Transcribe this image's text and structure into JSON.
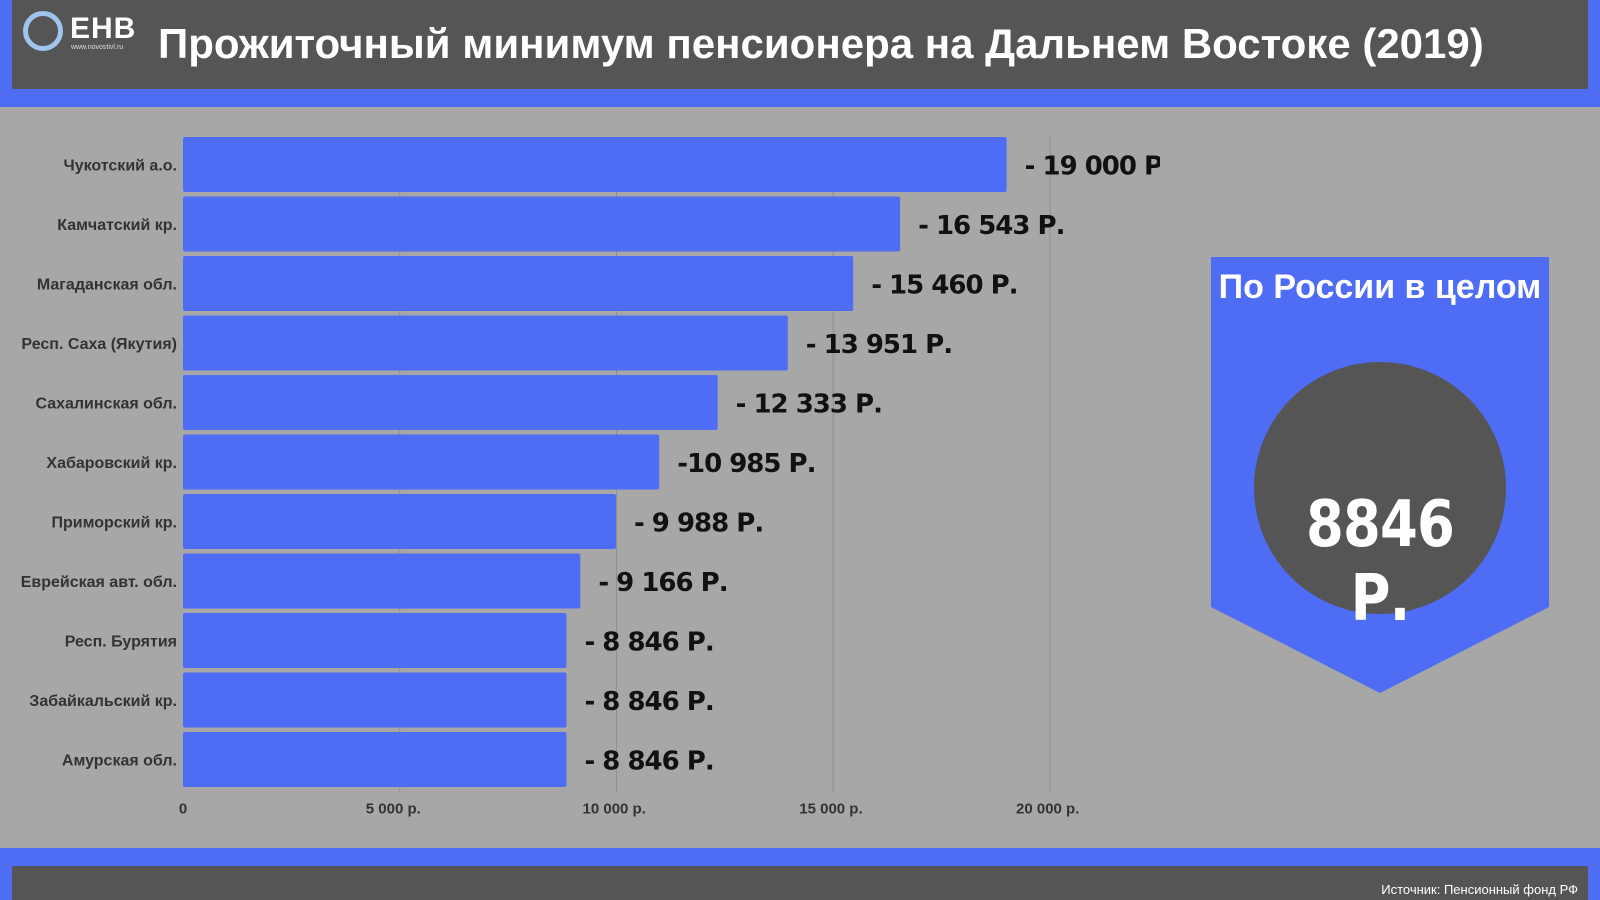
{
  "logo": {
    "text": "ЕНВ",
    "url": "www.novostivl.ru"
  },
  "header": {
    "title": "Прожиточный минимум пенсионера на Дальнем Востоке (2019)"
  },
  "summary": {
    "label": "По России в целом",
    "value": "8846 Р."
  },
  "footer": {
    "source": "Источник: Пенсионный фонд РФ"
  },
  "colors": {
    "bar": "#4f6cf5",
    "background": "#a7a7a7",
    "header": "#555555",
    "circle": "#555555"
  },
  "chart_data": {
    "type": "bar",
    "orientation": "horizontal",
    "categories": [
      "Чукотский а.о.",
      "Камчатский кр.",
      "Магаданская обл.",
      "Респ. Саха (Якутия)",
      "Сахалинская обл.",
      "Хабаровский кр.",
      "Приморский кр.",
      "Еврейская авт. обл.",
      "Респ. Бурятия",
      "Забайкальский кр.",
      "Амурская обл."
    ],
    "values": [
      19000,
      16543,
      15460,
      13951,
      12333,
      10985,
      9988,
      9166,
      8846,
      8846,
      8846
    ],
    "value_labels": [
      "- 19 000 Р.",
      "- 16 543 Р.",
      "- 15 460 Р.",
      "- 13 951 Р.",
      "- 12 333 Р.",
      "-10 985 Р.",
      "- 9 988 Р.",
      "- 9 166 Р.",
      "- 8 846 Р.",
      "- 8 846 Р.",
      "- 8 846 Р."
    ],
    "xticks": [
      0,
      5000,
      10000,
      15000,
      20000
    ],
    "xtick_labels": [
      "0",
      "5 000  р.",
      "10 000  р.",
      "15 000  р.",
      "20 000  р."
    ],
    "xlim": [
      0,
      20000
    ],
    "grid": true
  }
}
